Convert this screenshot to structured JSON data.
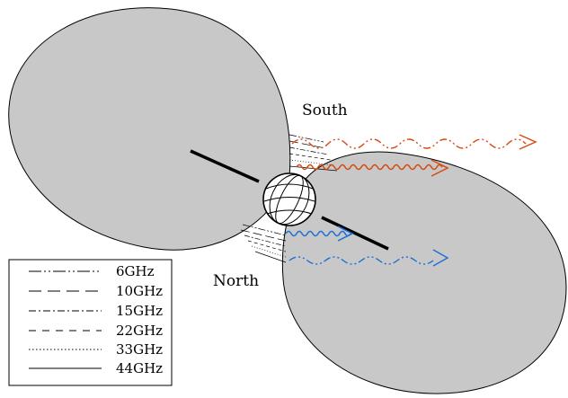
{
  "labels": {
    "south": "South",
    "north": "North"
  },
  "legend": {
    "items": [
      {
        "label": "6GHz",
        "dash": "long-dash-dot-dot"
      },
      {
        "label": "10GHz",
        "dash": "long-dash"
      },
      {
        "label": "15GHz",
        "dash": "dash-dot"
      },
      {
        "label": "22GHz",
        "dash": "short-dash"
      },
      {
        "label": "33GHz",
        "dash": "dotted"
      },
      {
        "label": "44GHz",
        "dash": "solid"
      }
    ]
  },
  "colors": {
    "lobe_fill": "#c8c8c8",
    "jet_outline": "#000000",
    "arrow_south": "#d9480f",
    "arrow_north": "#1c6fd6"
  },
  "arrows": [
    {
      "side": "south",
      "style": "dash-dot-dot",
      "kind": "wavy-dashed"
    },
    {
      "side": "south",
      "style": "solid",
      "kind": "wavy"
    },
    {
      "side": "north",
      "style": "solid",
      "kind": "wavy"
    },
    {
      "side": "north",
      "style": "dash-dot-dot",
      "kind": "wavy-dashed"
    }
  ]
}
